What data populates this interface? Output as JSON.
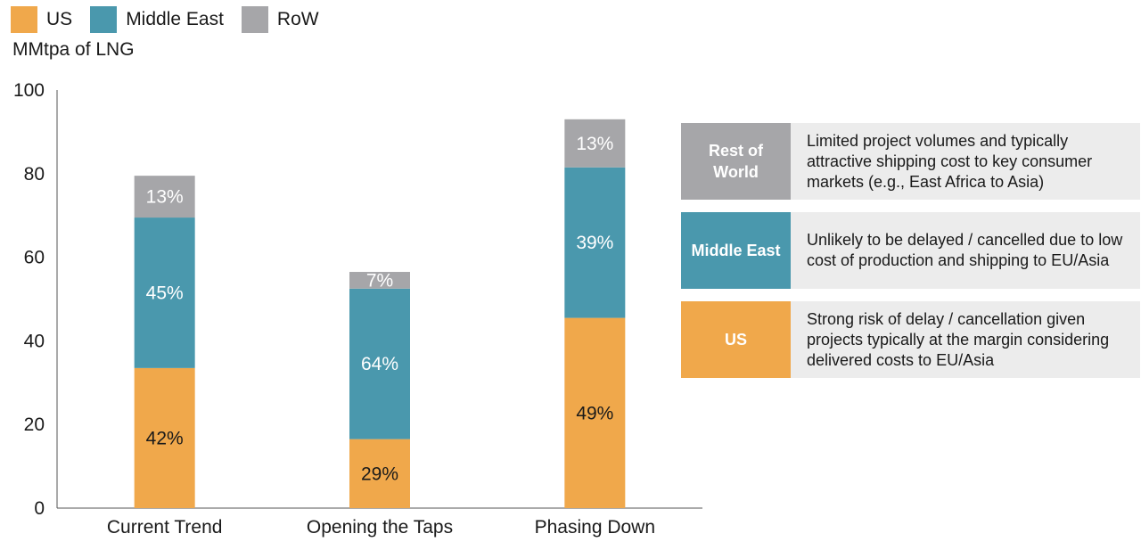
{
  "legend": [
    {
      "label": "US",
      "color": "#f0a84b"
    },
    {
      "label": "Middle East",
      "color": "#4a98ad"
    },
    {
      "label": "RoW",
      "color": "#a6a6a9"
    }
  ],
  "ylabel": "MMtpa of LNG",
  "chart_data": {
    "type": "bar",
    "stacked": true,
    "categories": [
      "Current Trend",
      "Opening the Taps",
      "Phasing Down"
    ],
    "ylim": [
      0,
      100
    ],
    "yticks": [
      0,
      20,
      40,
      60,
      80,
      100
    ],
    "grid": false,
    "legend_position": "top-left",
    "series": [
      {
        "name": "US",
        "color": "#f0a84b",
        "values": [
          33.5,
          16.5,
          45.5
        ],
        "labels": [
          "42%",
          "29%",
          "49%"
        ],
        "label_color": "#1a1a1a"
      },
      {
        "name": "Middle East",
        "color": "#4a98ad",
        "values": [
          36,
          36,
          36
        ],
        "labels": [
          "45%",
          "64%",
          "39%"
        ],
        "label_color": "#ffffff"
      },
      {
        "name": "RoW",
        "color": "#a6a6a9",
        "values": [
          10,
          4,
          11.5
        ],
        "labels": [
          "13%",
          "7%",
          "13%"
        ],
        "label_color": "#ffffff"
      }
    ]
  },
  "notes": [
    {
      "tag": "Rest of World",
      "color": "#a6a6a9",
      "text": "Limited project volumes and typically attractive shipping cost to key consumer markets (e.g., East Africa to Asia)"
    },
    {
      "tag": "Middle East",
      "color": "#4a98ad",
      "text": "Unlikely to be delayed / cancelled due to low cost of production and shipping to EU/Asia"
    },
    {
      "tag": "US",
      "color": "#f0a84b",
      "text": "Strong risk of delay / cancellation given projects typically at the margin considering delivered costs to EU/Asia"
    }
  ]
}
